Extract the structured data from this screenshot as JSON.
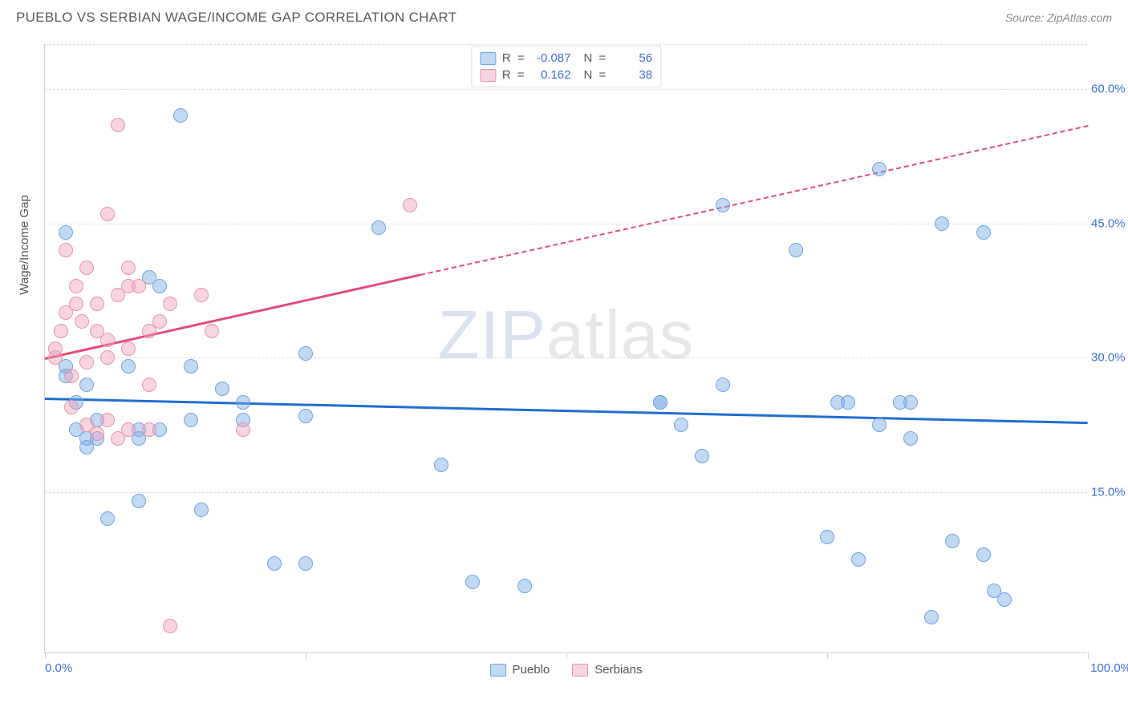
{
  "title": "PUEBLO VS SERBIAN WAGE/INCOME GAP CORRELATION CHART",
  "source": "Source: ZipAtlas.com",
  "y_axis_label": "Wage/Income Gap",
  "x_min_label": "0.0%",
  "x_max_label": "100.0%",
  "watermark": {
    "part1": "ZIP",
    "part2": "atlas"
  },
  "chart": {
    "type": "scatter",
    "xlim": [
      0,
      100
    ],
    "ylim": [
      -3,
      65
    ],
    "y_ticks": [
      15.0,
      30.0,
      45.0,
      60.0
    ],
    "y_tick_labels": [
      "15.0%",
      "30.0%",
      "45.0%",
      "60.0%"
    ],
    "x_ticks": [
      0,
      25,
      50,
      75,
      100
    ],
    "grid_color": "#dcdcdc",
    "axis_color": "#cfcfcf",
    "tick_label_color": "#3b6fd6",
    "marker_radius": 9,
    "marker_border_width": 1.5,
    "series": [
      {
        "name": "Pueblo",
        "fill": "rgba(120,170,230,0.45)",
        "stroke": "#6fa4e1",
        "trend_color": "#1f6fd0",
        "trend": {
          "x1": 0,
          "y1": 25.5,
          "x2": 100,
          "y2": 22.8,
          "solid_until_x": 100
        },
        "points": [
          [
            2,
            44
          ],
          [
            2,
            29
          ],
          [
            2,
            28
          ],
          [
            3,
            25
          ],
          [
            3,
            22
          ],
          [
            4,
            27
          ],
          [
            4,
            21
          ],
          [
            4,
            20
          ],
          [
            5,
            23
          ],
          [
            5,
            21
          ],
          [
            6,
            12
          ],
          [
            8,
            29
          ],
          [
            9,
            22
          ],
          [
            9,
            21
          ],
          [
            9,
            14
          ],
          [
            10,
            39
          ],
          [
            11,
            38
          ],
          [
            11,
            22
          ],
          [
            13,
            57
          ],
          [
            14,
            29
          ],
          [
            14,
            23
          ],
          [
            15,
            13
          ],
          [
            17,
            26.5
          ],
          [
            19,
            25
          ],
          [
            19,
            23
          ],
          [
            22,
            7
          ],
          [
            25,
            30.5
          ],
          [
            25,
            23.5
          ],
          [
            25,
            7
          ],
          [
            32,
            44.5
          ],
          [
            38,
            18
          ],
          [
            41,
            5
          ],
          [
            46,
            4.5
          ],
          [
            59,
            25
          ],
          [
            59,
            25
          ],
          [
            61,
            22.5
          ],
          [
            63,
            19
          ],
          [
            65,
            47
          ],
          [
            65,
            27
          ],
          [
            72,
            42
          ],
          [
            75,
            10
          ],
          [
            76,
            25
          ],
          [
            77,
            25
          ],
          [
            78,
            7.5
          ],
          [
            80,
            51
          ],
          [
            80,
            22.5
          ],
          [
            82,
            25
          ],
          [
            83,
            21
          ],
          [
            85,
            1
          ],
          [
            86,
            45
          ],
          [
            87,
            9.5
          ],
          [
            90,
            44
          ],
          [
            90,
            8
          ],
          [
            91,
            4
          ],
          [
            92,
            3
          ],
          [
            83,
            25
          ]
        ]
      },
      {
        "name": "Serbians",
        "fill": "rgba(240,160,185,0.45)",
        "stroke": "#e793ae",
        "trend_color": "#e24b78",
        "trend": {
          "x1": 0,
          "y1": 30,
          "x2": 100,
          "y2": 56,
          "solid_until_x": 36
        },
        "points": [
          [
            1,
            31
          ],
          [
            1,
            30
          ],
          [
            1.5,
            33
          ],
          [
            2,
            42
          ],
          [
            2,
            35
          ],
          [
            2.5,
            28
          ],
          [
            2.5,
            24.5
          ],
          [
            3,
            38
          ],
          [
            3,
            36
          ],
          [
            3.5,
            34
          ],
          [
            4,
            40
          ],
          [
            4,
            29.5
          ],
          [
            4,
            22.5
          ],
          [
            5,
            36
          ],
          [
            5,
            33
          ],
          [
            5,
            21.5
          ],
          [
            6,
            46
          ],
          [
            6,
            32
          ],
          [
            6,
            30
          ],
          [
            6,
            23
          ],
          [
            7,
            37
          ],
          [
            7,
            21
          ],
          [
            7,
            56
          ],
          [
            8,
            40
          ],
          [
            8,
            38
          ],
          [
            8,
            31
          ],
          [
            8,
            22
          ],
          [
            9,
            38
          ],
          [
            10,
            33
          ],
          [
            10,
            27
          ],
          [
            10,
            22
          ],
          [
            11,
            34
          ],
          [
            12,
            0
          ],
          [
            12,
            36
          ],
          [
            15,
            37
          ],
          [
            16,
            33
          ],
          [
            19,
            22
          ],
          [
            35,
            47
          ]
        ]
      }
    ]
  },
  "top_legend": [
    {
      "swatch_fill": "rgba(120,170,230,0.45)",
      "swatch_stroke": "#6fa4e1",
      "r": "-0.087",
      "n": "56"
    },
    {
      "swatch_fill": "rgba(240,160,185,0.45)",
      "swatch_stroke": "#e793ae",
      "r": "0.162",
      "n": "38"
    }
  ],
  "bottom_legend": [
    {
      "label": "Pueblo",
      "swatch_fill": "rgba(120,170,230,0.45)",
      "swatch_stroke": "#6fa4e1"
    },
    {
      "label": "Serbians",
      "swatch_fill": "rgba(240,160,185,0.45)",
      "swatch_stroke": "#e793ae"
    }
  ]
}
